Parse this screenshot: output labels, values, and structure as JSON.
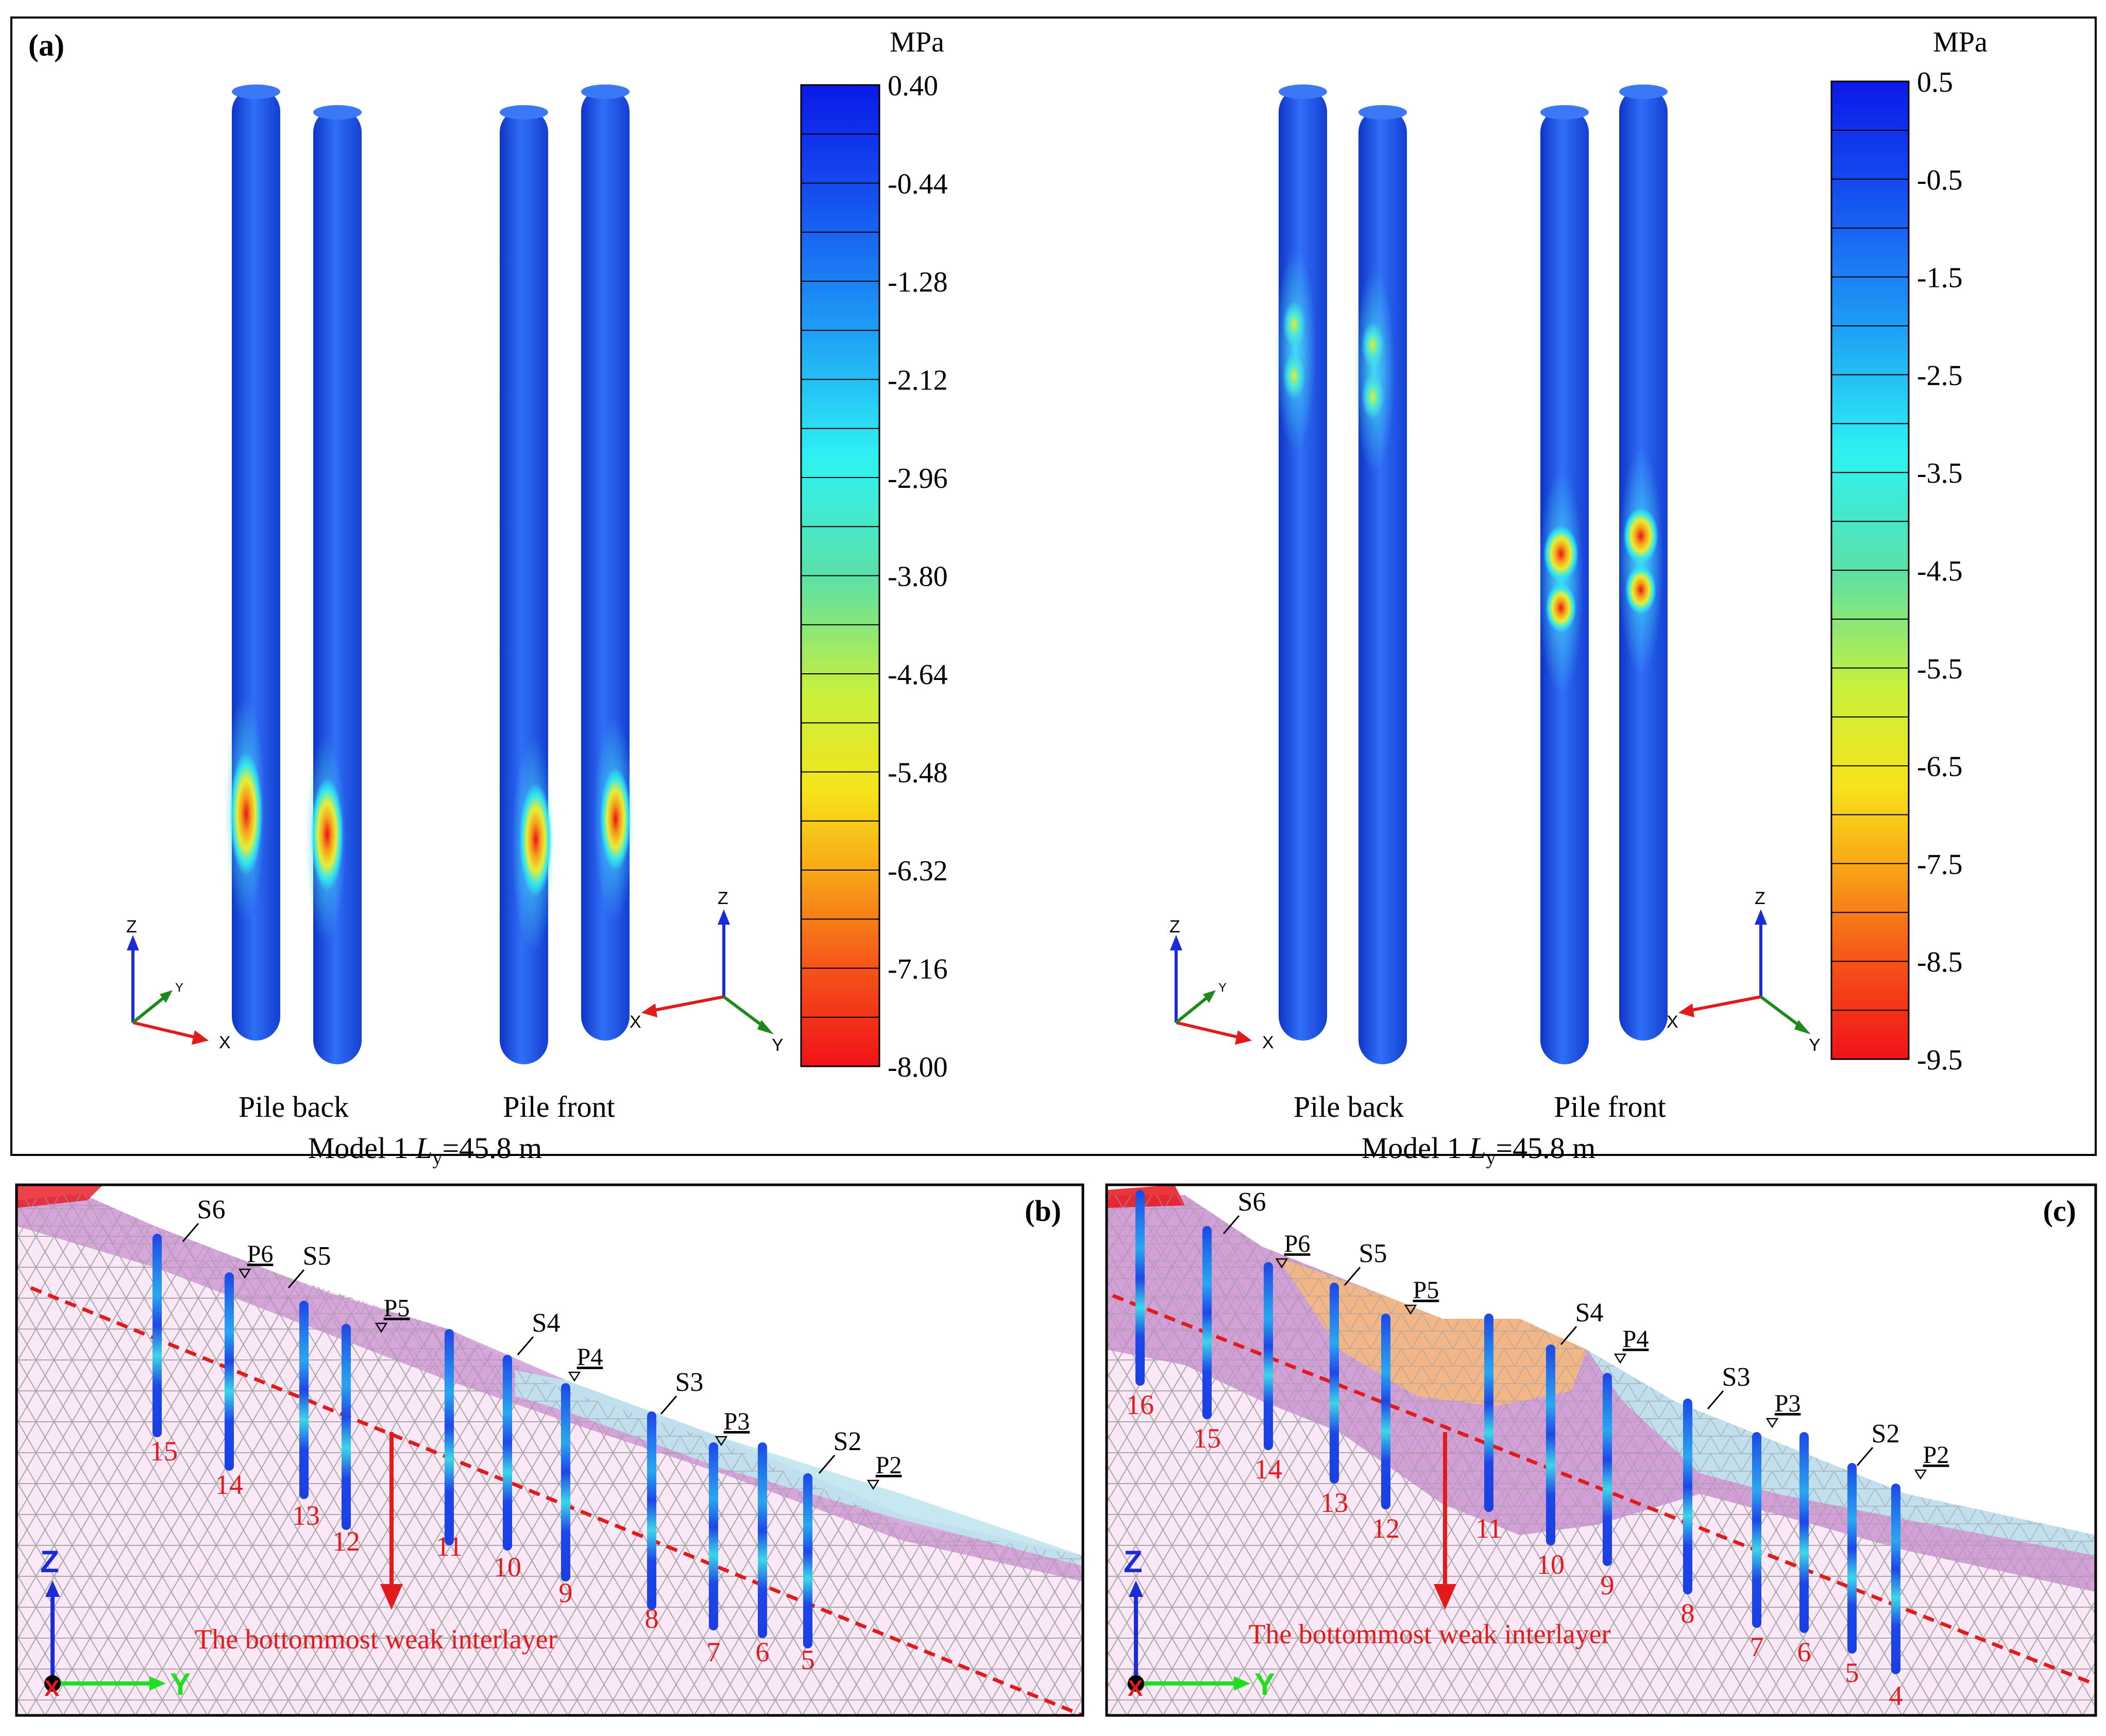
{
  "panel_a": {
    "label": "(a)",
    "left": {
      "unit": "MPa",
      "ticks": [
        "0.40",
        "-0.44",
        "-1.28",
        "-2.12",
        "-2.96",
        "-3.80",
        "-4.64",
        "-5.48",
        "-6.32",
        "-7.16",
        "-8.00"
      ],
      "caption_back": "Pile back",
      "caption_front": "Pile front",
      "model_prefix": "Model 1 ",
      "model_L": "L",
      "model_sub": "y",
      "model_suffix": "=45.8 m",
      "axes": {
        "z": "Z",
        "y": "Y",
        "x": "X"
      }
    },
    "right": {
      "unit": "MPa",
      "ticks": [
        "0.5",
        "-0.5",
        "-1.5",
        "-2.5",
        "-3.5",
        "-4.5",
        "-5.5",
        "-6.5",
        "-7.5",
        "-8.5",
        "-9.5"
      ],
      "caption_back": "Pile back",
      "caption_front": "Pile front",
      "model_prefix": "Model 1 ",
      "model_L": "L",
      "model_sub": "y",
      "model_suffix": "=45.8 m",
      "axes": {
        "z": "Z",
        "y": "Y",
        "x": "X"
      }
    }
  },
  "panel_b": {
    "label": "(b)",
    "pile_numbers": [
      "15",
      "14",
      "13",
      "12",
      "11",
      "10",
      "9",
      "8",
      "7",
      "6",
      "5"
    ],
    "section_labels": [
      "S6",
      "S5",
      "S4",
      "S3",
      "S2"
    ],
    "point_labels": [
      "P6",
      "P5",
      "P4",
      "P3",
      "P2"
    ],
    "interlayer_text": "The bottommost weak interlayer",
    "axis_z": "Z",
    "axis_y": "Y",
    "axis_x": "X"
  },
  "panel_c": {
    "label": "(c)",
    "pile_numbers": [
      "16",
      "15",
      "14",
      "13",
      "12",
      "11",
      "10",
      "9",
      "8",
      "7",
      "6",
      "5",
      "4"
    ],
    "section_labels": [
      "S6",
      "S5",
      "S4",
      "S3",
      "S2"
    ],
    "point_labels": [
      "P6",
      "P5",
      "P4",
      "P3",
      "P2"
    ],
    "interlayer_text": "The bottommost weak interlayer",
    "axis_z": "Z",
    "axis_y": "Y",
    "axis_x": "X"
  },
  "colors": {
    "pile_blue": "#1a4fe0",
    "hot_red": "#e8141a",
    "annotation_red": "#e31a1c",
    "mesh_line": "#a8a8a8",
    "soil_pink": "#fbe8f6",
    "weak_layer_purple": "#c98fd0",
    "cover_cyan": "#bfe6ef",
    "orange_block": "#f6b97e"
  }
}
